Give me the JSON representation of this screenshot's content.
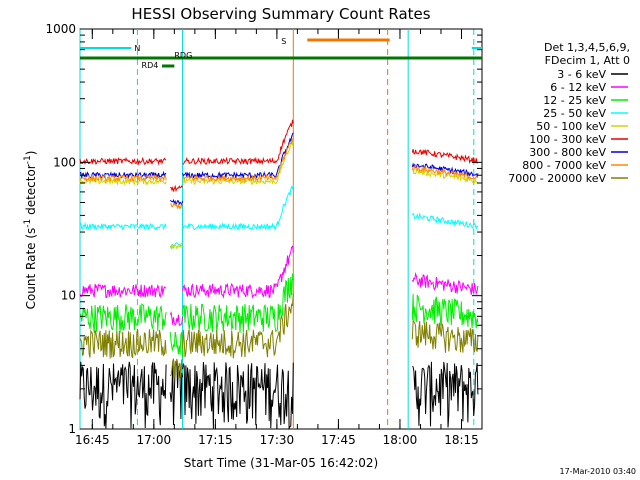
{
  "chart_data": {
    "type": "line",
    "title": "HESSI Observing Summary Count Rates",
    "xlabel": "Start Time (31-Mar-05 16:42:02)",
    "ylabel": "Count Rate (s",
    "ylabel_sup": "-1",
    "ylabel_mid": " detector",
    "ylabel_end": ")",
    "y_scale": "log",
    "ylim": [
      1,
      1000
    ],
    "xlim": [
      "16:42",
      "18:20"
    ],
    "x_tick_labels": [
      "16:45",
      "17:00",
      "17:15",
      "17:30",
      "17:45",
      "18:00",
      "18:15"
    ],
    "y_tick_labels": [
      "1",
      "10",
      "100",
      "1000"
    ],
    "footer_stamp": "17-Mar-2010 03:40",
    "legend_header": [
      "Det 1,3,4,5,6,9,",
      "FDecim 1, Att 0"
    ],
    "series": [
      {
        "name": "3 - 6 keV",
        "color": "#000000",
        "base": 2.0
      },
      {
        "name": "6 - 12 keV",
        "color": "#ff00ff",
        "base": 11
      },
      {
        "name": "12 - 25 keV",
        "color": "#00ee00",
        "base": 7
      },
      {
        "name": "25 - 50 keV",
        "color": "#00ffff",
        "base": 33
      },
      {
        "name": "50 - 100 keV",
        "color": "#d4d400",
        "base": 72
      },
      {
        "name": "100 - 300 keV",
        "color": "#ee0000",
        "base": 102
      },
      {
        "name": "300 - 800 keV",
        "color": "#0000dd",
        "base": 80
      },
      {
        "name": "800 - 7000 keV",
        "color": "#ff8800",
        "base": 76
      },
      {
        "name": "7000 - 20000 keV",
        "color": "#808000",
        "base": 4.5
      }
    ],
    "annotations": {
      "night_label": "N",
      "saa_label": "S",
      "rd4_label": "RD4",
      "rdg_label": "RDG"
    },
    "segments": [
      {
        "start": "16:42",
        "end": "17:03"
      },
      {
        "start": "17:04",
        "end": "17:07"
      },
      {
        "start": "17:07",
        "end": "17:34"
      },
      {
        "start": "18:03",
        "end": "18:19"
      }
    ],
    "marker_times": {
      "night_start_solid": "16:42",
      "night_start_dash": "16:56",
      "night_end_solid": "17:07",
      "saa_start_solid": "17:34",
      "saa_end_dash": "17:57",
      "night2_solid": "18:02",
      "night2_dash": "18:18"
    }
  }
}
